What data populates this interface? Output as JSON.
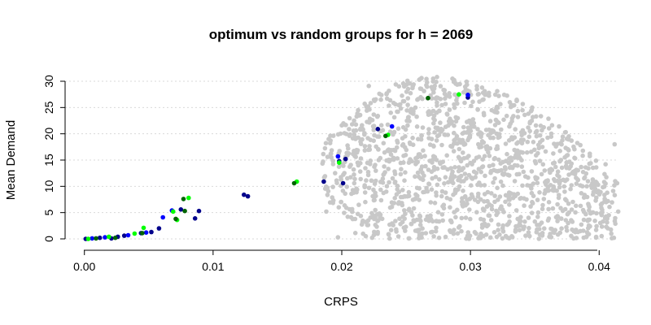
{
  "chart_data": {
    "type": "scatter",
    "title": "optimum vs random groups for h = 2069",
    "xlabel": "CRPS",
    "ylabel": "Mean Demand",
    "xlim": [
      -0.0015,
      0.0415
    ],
    "ylim": [
      0,
      30
    ],
    "xticks": [
      0.0,
      0.01,
      0.02,
      0.03,
      0.04
    ],
    "xtick_labels": [
      "0.00",
      "0.01",
      "0.02",
      "0.03",
      "0.04"
    ],
    "yticks": [
      0,
      5,
      10,
      15,
      20,
      25,
      30
    ],
    "ytick_labels": [
      "0",
      "5",
      "10",
      "15",
      "20",
      "25",
      "30"
    ],
    "grid": "horizontal dotted",
    "random_cloud": {
      "color": "#c8c8c8",
      "approx_count": 1400,
      "x_range": [
        0.0185,
        0.0415
      ],
      "y_range": [
        0,
        31
      ],
      "description_points": [
        [
          0.0186,
          10.9
        ],
        [
          0.0188,
          5.2
        ],
        [
          0.0197,
          0.3
        ],
        [
          0.0203,
          15.6
        ],
        [
          0.0208,
          21.8
        ],
        [
          0.0215,
          18.9
        ],
        [
          0.0221,
          29.1
        ],
        [
          0.0228,
          23.4
        ],
        [
          0.0235,
          27.7
        ],
        [
          0.0242,
          29.4
        ],
        [
          0.0251,
          30.1
        ],
        [
          0.0262,
          30.6
        ],
        [
          0.0274,
          30.8
        ],
        [
          0.0286,
          30.5
        ],
        [
          0.0297,
          29.9
        ],
        [
          0.0309,
          28.8
        ],
        [
          0.0322,
          27.2
        ],
        [
          0.0336,
          26.3
        ],
        [
          0.0348,
          25.0
        ],
        [
          0.0365,
          18.1
        ],
        [
          0.0381,
          12.9
        ],
        [
          0.0395,
          11.3
        ],
        [
          0.0403,
          3.3
        ],
        [
          0.0412,
          18.0
        ],
        [
          0.0226,
          4.1
        ],
        [
          0.0284,
          1.6
        ],
        [
          0.0311,
          2.9
        ],
        [
          0.0357,
          7.6
        ],
        [
          0.0392,
          0.9
        ],
        [
          0.0405,
          14.2
        ]
      ]
    },
    "series": [
      {
        "color": "#00008b",
        "points": [
          [
            0.0001,
            0.0
          ],
          [
            0.0012,
            0.2
          ],
          [
            0.0021,
            0.1
          ],
          [
            0.0026,
            0.4
          ],
          [
            0.0031,
            0.6
          ],
          [
            0.0044,
            1.1
          ],
          [
            0.0052,
            1.3
          ],
          [
            0.0058,
            2.0
          ],
          [
            0.0075,
            5.6
          ],
          [
            0.0086,
            3.9
          ],
          [
            0.0089,
            5.3
          ],
          [
            0.0124,
            8.4
          ],
          [
            0.0127,
            8.1
          ],
          [
            0.0186,
            10.9
          ],
          [
            0.0198,
            14.8
          ],
          [
            0.0201,
            10.6
          ],
          [
            0.0203,
            15.2
          ],
          [
            0.0228,
            20.9
          ],
          [
            0.0298,
            26.9
          ]
        ]
      },
      {
        "color": "#0000ff",
        "points": [
          [
            0.0006,
            0.1
          ],
          [
            0.0016,
            0.3
          ],
          [
            0.0034,
            0.7
          ],
          [
            0.0048,
            1.2
          ],
          [
            0.0061,
            4.1
          ],
          [
            0.0068,
            5.4
          ],
          [
            0.0197,
            15.7
          ],
          [
            0.0239,
            21.4
          ],
          [
            0.0298,
            27.4
          ]
        ]
      },
      {
        "color": "#00ff00",
        "points": [
          [
            0.0003,
            0.0
          ],
          [
            0.0019,
            0.4
          ],
          [
            0.0039,
            1.0
          ],
          [
            0.0046,
            2.1
          ],
          [
            0.0069,
            5.2
          ],
          [
            0.0072,
            3.6
          ],
          [
            0.0081,
            7.8
          ],
          [
            0.0165,
            10.9
          ],
          [
            0.0198,
            14.5
          ],
          [
            0.0236,
            19.8
          ],
          [
            0.0291,
            27.5
          ]
        ]
      },
      {
        "color": "#006400",
        "points": [
          [
            0.0009,
            0.1
          ],
          [
            0.0024,
            0.2
          ],
          [
            0.0045,
            1.1
          ],
          [
            0.0071,
            3.8
          ],
          [
            0.0077,
            7.6
          ],
          [
            0.0078,
            5.3
          ],
          [
            0.0163,
            10.6
          ],
          [
            0.0234,
            19.6
          ],
          [
            0.0267,
            26.8
          ]
        ]
      }
    ]
  }
}
